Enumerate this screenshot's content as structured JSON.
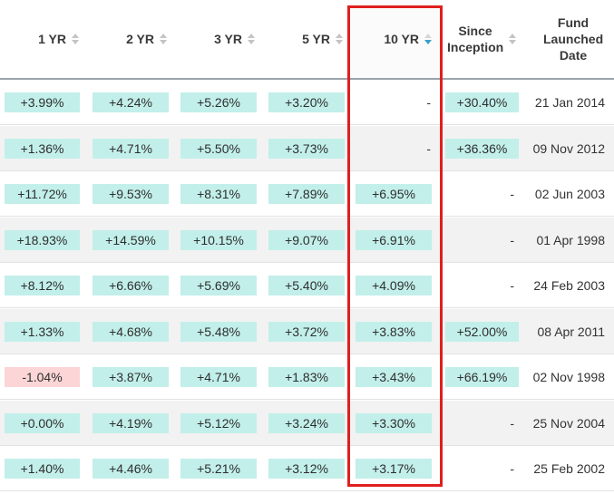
{
  "columns": [
    {
      "label": "1 YR",
      "sortable": true,
      "active": false
    },
    {
      "label": "2 YR",
      "sortable": true,
      "active": false
    },
    {
      "label": "3 YR",
      "sortable": true,
      "active": false
    },
    {
      "label": "5 YR",
      "sortable": true,
      "active": false
    },
    {
      "label": "10 YR",
      "sortable": true,
      "active": true
    },
    {
      "label": "Since Inception",
      "sortable": true,
      "active": false
    },
    {
      "label": "Fund Launched Date",
      "sortable": false,
      "active": false
    }
  ],
  "rows": [
    {
      "y1": "+3.99%",
      "y2": "+4.24%",
      "y3": "+5.26%",
      "y5": "+3.20%",
      "y10": "-",
      "since": "+30.40%",
      "launched": "21 Jan 2014"
    },
    {
      "y1": "+1.36%",
      "y2": "+4.71%",
      "y3": "+5.50%",
      "y5": "+3.73%",
      "y10": "-",
      "since": "+36.36%",
      "launched": "09 Nov 2012"
    },
    {
      "y1": "+11.72%",
      "y2": "+9.53%",
      "y3": "+8.31%",
      "y5": "+7.89%",
      "y10": "+6.95%",
      "since": "-",
      "launched": "02 Jun 2003"
    },
    {
      "y1": "+18.93%",
      "y2": "+14.59%",
      "y3": "+10.15%",
      "y5": "+9.07%",
      "y10": "+6.91%",
      "since": "-",
      "launched": "01 Apr 1998"
    },
    {
      "y1": "+8.12%",
      "y2": "+6.66%",
      "y3": "+5.69%",
      "y5": "+5.40%",
      "y10": "+4.09%",
      "since": "-",
      "launched": "24 Feb 2003"
    },
    {
      "y1": "+1.33%",
      "y2": "+4.68%",
      "y3": "+5.48%",
      "y5": "+3.72%",
      "y10": "+3.83%",
      "since": "+52.00%",
      "launched": "08 Apr 2011"
    },
    {
      "y1": "-1.04%",
      "y2": "+3.87%",
      "y3": "+4.71%",
      "y5": "+1.83%",
      "y10": "+3.43%",
      "since": "+66.19%",
      "launched": "02 Nov 1998"
    },
    {
      "y1": "+0.00%",
      "y2": "+4.19%",
      "y3": "+5.12%",
      "y5": "+3.24%",
      "y10": "+3.30%",
      "since": "-",
      "launched": "25 Nov 2004"
    },
    {
      "y1": "+1.40%",
      "y2": "+4.46%",
      "y3": "+5.21%",
      "y5": "+3.12%",
      "y10": "+3.17%",
      "since": "-",
      "launched": "25 Feb 2002"
    }
  ],
  "colors": {
    "positive_bg": "#c2efea",
    "negative_bg": "#fcd5d6",
    "highlight_border": "#e01e1e",
    "active_sort_arrow": "#3aa0c8"
  }
}
